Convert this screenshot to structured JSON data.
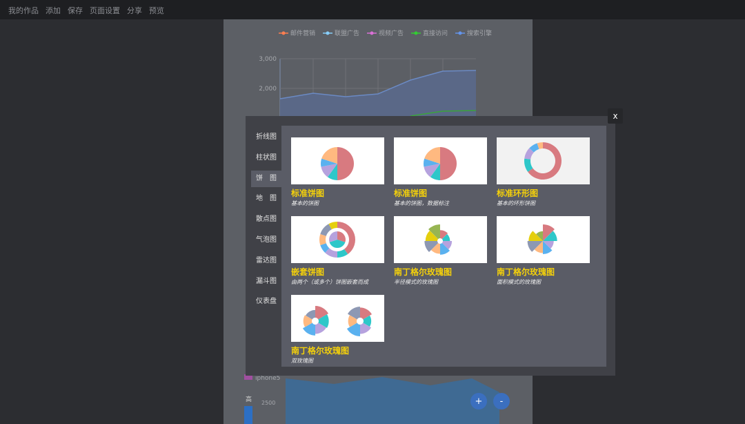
{
  "menu": [
    "我的作品",
    "添加",
    "保存",
    "页面设置",
    "分享",
    "预览"
  ],
  "background": {
    "legend": [
      "邮件营销",
      "联盟广告",
      "视频广告",
      "直接访问",
      "搜索引擎"
    ],
    "yticks": [
      "3,000",
      "2,000"
    ],
    "map_legend": [
      "iphone5"
    ],
    "visual_map": {
      "label": "高",
      "value": "2500"
    }
  },
  "modal": {
    "close": "x",
    "sidebar": [
      "折线图",
      "柱状图",
      "饼　图",
      "地　图",
      "散点图",
      "气泡图",
      "雷达图",
      "漏斗图",
      "仪表盘"
    ],
    "active": 2,
    "cards": [
      {
        "title": "标准饼图",
        "subtitle": "基本的饼图"
      },
      {
        "title": "标准饼图",
        "subtitle": "基本的饼图，数据标注"
      },
      {
        "title": "标准环形图",
        "subtitle": "基本的环形饼图"
      },
      {
        "title": "嵌套饼图",
        "subtitle": "由两个（或多个）饼图嵌套而成"
      },
      {
        "title": "南丁格尔玫瑰图",
        "subtitle": "半径模式的玫瑰图"
      },
      {
        "title": "南丁格尔玫瑰图",
        "subtitle": "面积模式的玫瑰图"
      },
      {
        "title": "南丁格尔玫瑰图",
        "subtitle": "双玫瑰图"
      }
    ]
  }
}
